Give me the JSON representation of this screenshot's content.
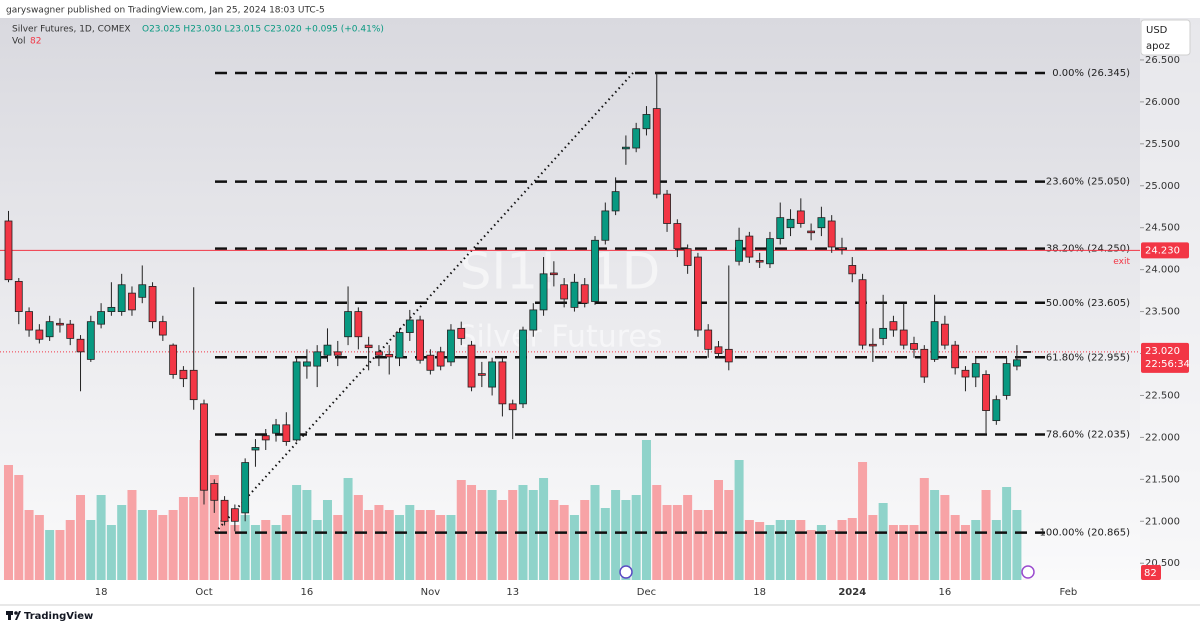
{
  "chart_data": {
    "type": "candlestick",
    "header": "garyswagner published on TradingView.com, Jan 25, 2024 18:03 UTC-5",
    "legend": {
      "symbol": "Silver Futures, 1D, COMEX",
      "ohlc": "O23.025 H23.030 L23.015 C23.020 +0.095 (+0.41%)",
      "volume_label": "Vol"
    },
    "currency": "USD",
    "layout_name": "apoz",
    "watermark": {
      "symbol": "SI1!, 1D",
      "description": "Silver Futures"
    },
    "brand": "TradingView",
    "categories": [
      null,
      null,
      null,
      null,
      null,
      null,
      null,
      null,
      null,
      "18",
      null,
      null,
      null,
      null,
      null,
      null,
      null,
      null,
      null,
      "Oct",
      null,
      null,
      null,
      null,
      null,
      null,
      null,
      null,
      null,
      "16",
      null,
      null,
      null,
      null,
      null,
      null,
      null,
      null,
      null,
      null,
      null,
      "Nov",
      null,
      null,
      null,
      null,
      null,
      null,
      null,
      "13",
      null,
      null,
      null,
      null,
      null,
      null,
      null,
      null,
      null,
      null,
      null,
      null,
      "Dec",
      null,
      null,
      null,
      null,
      null,
      null,
      null,
      null,
      null,
      null,
      "18",
      null,
      null,
      null,
      null,
      null,
      null,
      null,
      null,
      "2024",
      null,
      null,
      null,
      null,
      null,
      null,
      null,
      null,
      "16",
      null,
      null,
      null,
      null,
      null,
      null,
      null,
      null,
      null,
      null,
      null,
      "Feb"
    ],
    "open": [
      24.58,
      23.86,
      23.5,
      23.28,
      23.2,
      23.36,
      23.35,
      23.17,
      22.93,
      23.35,
      23.5,
      23.5,
      23.72,
      23.67,
      23.8,
      23.38,
      23.1,
      22.8,
      22.8,
      22.4,
      21.45,
      21.25,
      21.15,
      21.1,
      21.85,
      22.02,
      22.05,
      22.15,
      21.97,
      22.85,
      22.85,
      22.98,
      23.02,
      23.2,
      23.5,
      23.1,
      23.02,
      22.99,
      22.95,
      23.25,
      23.4,
      22.98,
      23.02,
      22.9,
      23.3,
      23.1,
      22.76,
      22.6,
      22.9,
      22.4,
      22.4,
      23.28,
      23.52,
      23.96,
      23.82,
      23.55,
      23.82,
      23.62,
      24.35,
      24.7,
      25.44,
      25.45,
      25.68,
      25.92,
      24.9,
      24.55,
      24.25,
      24.15,
      23.28,
      23.08,
      23.05,
      24.1,
      24.4,
      24.11,
      24.07,
      24.37,
      24.5,
      24.7,
      24.46,
      24.5,
      24.58,
      24.26,
      24.05,
      23.88,
      23.11,
      23.18,
      23.38,
      23.28,
      23.12,
      23.05,
      22.93,
      23.35,
      23.1,
      22.8,
      22.72,
      22.75,
      22.2,
      22.5,
      22.85,
      23.025,
      null,
      null,
      null,
      null
    ],
    "high": [
      24.7,
      23.9,
      23.55,
      23.35,
      23.45,
      23.42,
      23.4,
      23.22,
      23.45,
      23.6,
      23.85,
      23.95,
      23.8,
      24.05,
      23.85,
      23.45,
      23.12,
      22.85,
      23.79,
      22.45,
      21.5,
      21.3,
      21.2,
      21.75,
      21.98,
      22.1,
      22.22,
      22.3,
      22.95,
      23.05,
      23.1,
      23.3,
      23.15,
      23.8,
      23.55,
      23.2,
      23.1,
      23.1,
      23.3,
      23.52,
      23.45,
      23.05,
      23.08,
      23.35,
      23.38,
      23.15,
      22.9,
      22.95,
      22.95,
      22.45,
      23.32,
      23.6,
      24.15,
      24.1,
      23.9,
      23.95,
      23.9,
      24.4,
      24.8,
      25.1,
      25.6,
      25.75,
      25.95,
      26.345,
      24.95,
      24.6,
      24.3,
      24.2,
      23.35,
      23.15,
      24.05,
      24.5,
      24.45,
      24.2,
      24.45,
      24.8,
      24.72,
      24.85,
      24.55,
      24.75,
      24.65,
      24.38,
      24.15,
      23.95,
      23.3,
      23.7,
      23.45,
      23.6,
      23.2,
      23.1,
      23.7,
      23.45,
      23.15,
      22.85,
      22.95,
      22.8,
      22.5,
      22.95,
      23.1,
      23.03,
      null,
      null,
      null,
      null
    ],
    "low": [
      23.85,
      23.35,
      23.2,
      23.12,
      23.15,
      23.25,
      23.1,
      22.55,
      22.9,
      23.3,
      23.45,
      23.45,
      23.45,
      23.6,
      23.3,
      23.15,
      22.7,
      22.6,
      22.33,
      21.2,
      21.1,
      20.95,
      20.88,
      21.0,
      21.65,
      21.85,
      21.95,
      21.9,
      21.95,
      22.7,
      22.6,
      22.9,
      22.85,
      23.1,
      23.05,
      22.8,
      22.85,
      22.75,
      22.85,
      23.15,
      22.88,
      22.75,
      22.8,
      22.85,
      23.1,
      22.55,
      22.6,
      22.5,
      22.25,
      21.98,
      22.35,
      23.2,
      23.45,
      23.8,
      23.55,
      23.5,
      23.55,
      23.58,
      24.3,
      24.65,
      25.25,
      25.4,
      25.6,
      24.85,
      24.45,
      24.15,
      23.95,
      23.2,
      22.95,
      22.95,
      22.8,
      24.05,
      24.08,
      24.02,
      24.02,
      24.3,
      24.4,
      24.5,
      24.35,
      24.4,
      24.2,
      24.18,
      23.85,
      23.05,
      22.9,
      23.1,
      23.2,
      23.05,
      22.95,
      22.65,
      22.9,
      23.05,
      22.75,
      22.55,
      22.6,
      22.05,
      22.15,
      22.45,
      22.8,
      23.015,
      null,
      null,
      null,
      null
    ],
    "close": [
      23.88,
      23.5,
      23.28,
      23.17,
      23.38,
      23.34,
      23.18,
      23.02,
      23.38,
      23.5,
      23.55,
      23.82,
      23.52,
      23.82,
      23.38,
      23.22,
      22.75,
      22.7,
      22.45,
      21.37,
      21.25,
      21.0,
      21.0,
      21.7,
      21.88,
      21.97,
      22.15,
      21.95,
      22.9,
      22.9,
      23.02,
      23.1,
      22.98,
      23.5,
      23.2,
      23.07,
      22.98,
      22.96,
      23.25,
      23.4,
      22.92,
      22.8,
      22.85,
      23.28,
      23.18,
      22.6,
      22.74,
      22.9,
      22.4,
      22.33,
      23.28,
      23.52,
      23.95,
      23.94,
      23.65,
      23.85,
      23.6,
      24.35,
      24.7,
      24.93,
      25.46,
      25.68,
      25.85,
      24.9,
      24.55,
      24.25,
      24.05,
      23.28,
      23.05,
      23.0,
      22.9,
      24.35,
      24.15,
      24.09,
      24.37,
      24.62,
      24.6,
      24.55,
      24.44,
      24.62,
      24.27,
      24.24,
      23.95,
      23.1,
      23.09,
      23.3,
      23.28,
      23.1,
      23.05,
      22.72,
      23.38,
      23.1,
      22.83,
      22.72,
      22.88,
      22.32,
      22.45,
      22.88,
      22.925,
      23.02,
      null,
      null,
      null,
      null
    ],
    "volume": [
      115000,
      105000,
      70000,
      65000,
      50000,
      50000,
      60000,
      85000,
      60000,
      85000,
      55000,
      75000,
      90000,
      70000,
      70000,
      65000,
      70000,
      83000,
      83000,
      140000,
      105000,
      60000,
      55000,
      65000,
      55000,
      60000,
      55000,
      65000,
      95000,
      90000,
      60000,
      80000,
      65000,
      102000,
      85000,
      70000,
      75000,
      70000,
      65000,
      75000,
      70000,
      70000,
      65000,
      65000,
      100000,
      95000,
      90000,
      90000,
      80000,
      90000,
      95000,
      90000,
      102000,
      80000,
      75000,
      65000,
      80000,
      95000,
      72000,
      90000,
      80000,
      85000,
      140000,
      95000,
      75000,
      75000,
      85000,
      70000,
      70000,
      100000,
      90000,
      120000,
      60000,
      58000,
      55000,
      60000,
      60000,
      60000,
      50000,
      55000,
      50000,
      60000,
      62000,
      118000,
      65000,
      77000,
      55000,
      55000,
      55000,
      102000,
      90000,
      85000,
      65000,
      55000,
      60000,
      90000,
      60000,
      93000,
      70000,
      82,
      null,
      null,
      null,
      null
    ],
    "vol_ylim": [
      0,
      150000
    ],
    "ylim": [
      20.3,
      27.0
    ],
    "yticks": [
      {
        "value": 20.5,
        "label": "20.500"
      },
      {
        "value": 21.0,
        "label": "21.000"
      },
      {
        "value": 21.5,
        "label": "21.500"
      },
      {
        "value": 22.0,
        "label": "22.000"
      },
      {
        "value": 22.5,
        "label": "22.500"
      },
      {
        "value": 23.0,
        "label": "23.000"
      },
      {
        "value": 23.5,
        "label": "23.500"
      },
      {
        "value": 24.0,
        "label": "24.000"
      },
      {
        "value": 24.5,
        "label": "24.500"
      },
      {
        "value": 25.0,
        "label": "25.000"
      },
      {
        "value": 25.5,
        "label": "25.500"
      },
      {
        "value": 26.0,
        "label": "26.000"
      },
      {
        "value": 26.5,
        "label": "26.500"
      }
    ],
    "fib_levels": [
      {
        "value": 26.345,
        "label": "0.00% (26.345)"
      },
      {
        "value": 25.05,
        "label": "23.60% (25.050)"
      },
      {
        "value": 24.25,
        "label": "38.20% (24.250)"
      },
      {
        "value": 23.605,
        "label": "50.00% (23.605)"
      },
      {
        "value": 22.955,
        "label": "61.80% (22.955)"
      },
      {
        "value": 22.035,
        "label": "78.60% (22.035)"
      },
      {
        "value": 20.865,
        "label": "100.00% (20.865)"
      }
    ],
    "exit_line": {
      "value": 24.23,
      "label": "24.230",
      "text": "exit"
    },
    "last_price": {
      "value": 23.02,
      "label": "23.020",
      "countdown": "22:56:34"
    },
    "up_color": "#089981",
    "down_color": "#f23645",
    "volume_up_color": "#8fd3ca",
    "volume_down_color": "#f7a3a6",
    "grid": false
  }
}
